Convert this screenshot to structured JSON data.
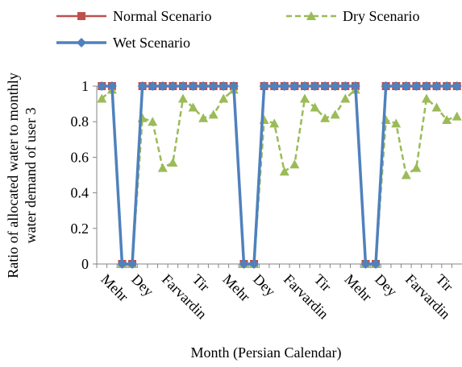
{
  "chart_data": {
    "type": "line",
    "xlabel": "Month (Persian Calendar)",
    "ylabel": [
      "Ratio of allocated water to monthly",
      "water demand of user 3"
    ],
    "categories": [
      "Mehr",
      null,
      null,
      "Dey",
      null,
      null,
      "Farvardin",
      null,
      null,
      "Tir",
      null,
      null,
      "Mehr",
      null,
      null,
      "Dey",
      null,
      null,
      "Farvardin",
      null,
      null,
      "Tir",
      null,
      null,
      "Mehr",
      null,
      null,
      "Dey",
      null,
      null,
      "Farvardin",
      null,
      null,
      "Tir",
      null,
      null
    ],
    "ylim": [
      0,
      1
    ],
    "yticks": [
      0,
      0.2,
      0.4,
      0.6,
      0.8,
      1
    ],
    "series": [
      {
        "name": "Normal Scenario",
        "color": "#c0504d",
        "marker": "square",
        "dash": false,
        "values": [
          1,
          1,
          0,
          0,
          1,
          1,
          1,
          1,
          1,
          1,
          1,
          1,
          1,
          1,
          0,
          0,
          1,
          1,
          1,
          1,
          1,
          1,
          1,
          1,
          1,
          1,
          0,
          0,
          1,
          1,
          1,
          1,
          1,
          1,
          1,
          1
        ]
      },
      {
        "name": "Dry Scenario",
        "color": "#9bbb59",
        "marker": "triangle",
        "dash": true,
        "values": [
          0.93,
          0.98,
          0,
          0,
          0.82,
          0.8,
          0.54,
          0.57,
          0.93,
          0.88,
          0.82,
          0.84,
          0.93,
          0.98,
          0,
          0,
          0.81,
          0.79,
          0.52,
          0.56,
          0.93,
          0.88,
          0.82,
          0.84,
          0.93,
          0.98,
          0,
          0,
          0.81,
          0.79,
          0.5,
          0.54,
          0.93,
          0.88,
          0.81,
          0.83
        ]
      },
      {
        "name": "Wet Scenario",
        "color": "#4f81bd",
        "marker": "diamond",
        "dash": false,
        "values": [
          1,
          1,
          0,
          0,
          1,
          1,
          1,
          1,
          1,
          1,
          1,
          1,
          1,
          1,
          0,
          0,
          1,
          1,
          1,
          1,
          1,
          1,
          1,
          1,
          1,
          1,
          0,
          0,
          1,
          1,
          1,
          1,
          1,
          1,
          1,
          1
        ]
      }
    ]
  }
}
